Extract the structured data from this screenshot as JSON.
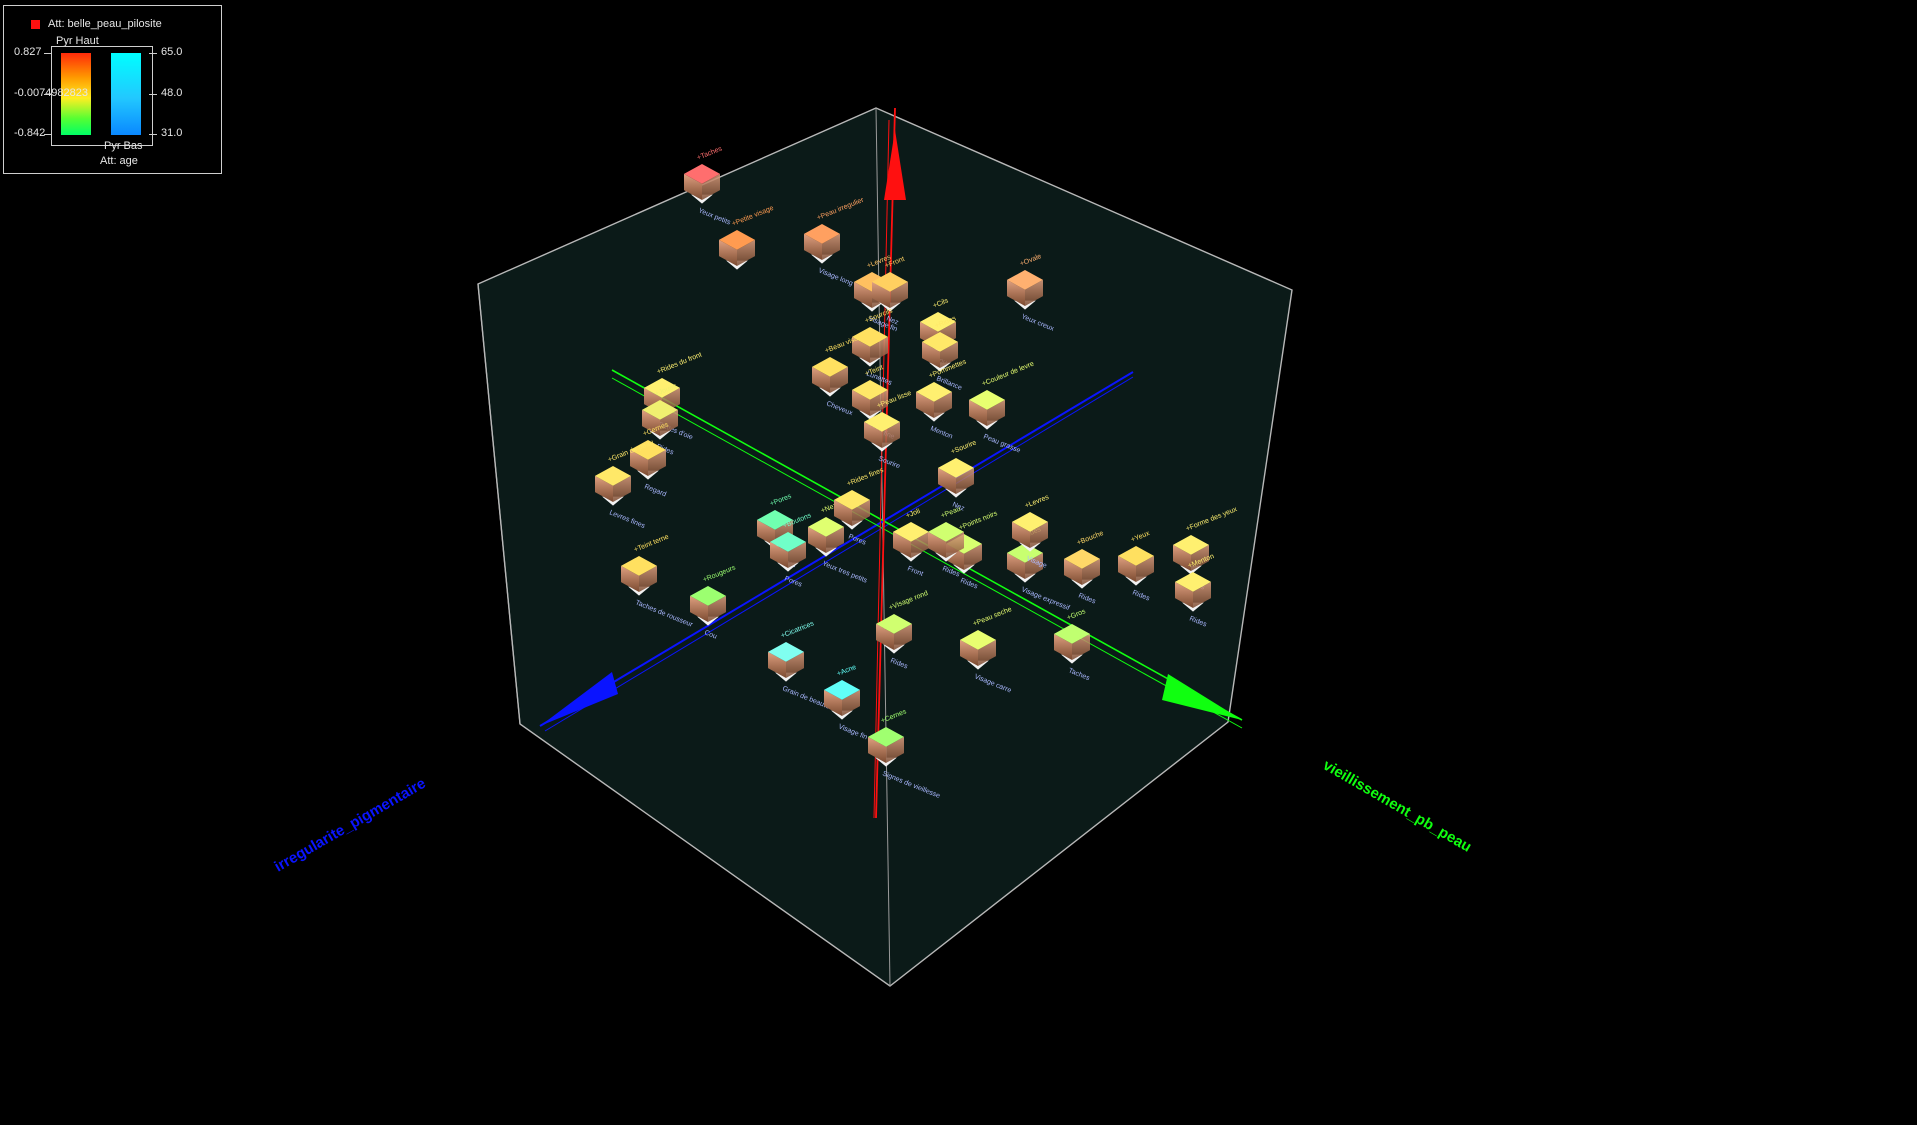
{
  "legend": {
    "color_attr": "Att: belle_peau_pilosite",
    "size_attr": "Att: age",
    "color_max": "0.827",
    "color_mid": "-0.0074982823",
    "color_min": "-0.842",
    "size_max": "65.0",
    "size_mid": "48.0",
    "size_min": "31.0",
    "pyr_high": "Pyr Haut",
    "pyr_low": "Pyr Bas",
    "swatch_color": "#ff1010"
  },
  "axes": {
    "x_label": "irregularite_pigmentaire",
    "y_label": "vieillissement_pb_peau",
    "x_color": "#0a14ff",
    "y_color": "#10ff10",
    "z_color": "#ff1010"
  },
  "points": [
    {
      "color": "#ff6e6e",
      "top": "+Taches",
      "bottom": "Yeux petits"
    },
    {
      "color": "#ff9b50",
      "top": "+Petite visage",
      "bottom": ""
    },
    {
      "color": "#ffa060",
      "top": "+Peau irregulier",
      "bottom": "Visage long"
    },
    {
      "color": "#ffb070",
      "top": "+Ovale",
      "bottom": "Yeux creux"
    },
    {
      "color": "#ffc060",
      "top": "+Levres",
      "bottom": "Visage fin"
    },
    {
      "color": "#ffd060",
      "top": "+Front",
      "bottom": "Nez"
    },
    {
      "color": "#fff070",
      "top": "+Cils",
      "bottom": "Cou"
    },
    {
      "color": "#ffe868",
      "top": "+Rides",
      "bottom": "Brillance"
    },
    {
      "color": "#ffe060",
      "top": "+Sourcils",
      "bottom": "Lunettes"
    },
    {
      "color": "#e8ff70",
      "top": "+Couleur de levre",
      "bottom": "Peau grasse"
    },
    {
      "color": "#fff070",
      "top": "+Pommettes",
      "bottom": "Menton"
    },
    {
      "color": "#ffe060",
      "top": "+Beau visage",
      "bottom": "Cheveux"
    },
    {
      "color": "#fff070",
      "top": "+Rides du front",
      "bottom": "Pattes d'oie"
    },
    {
      "color": "#ffe868",
      "top": "+Teint",
      "bottom": "Peau fine"
    },
    {
      "color": "#f0f070",
      "top": "+Joues",
      "bottom": "Rides"
    },
    {
      "color": "#fff070",
      "top": "+Peau lisse",
      "bottom": "Sourire"
    },
    {
      "color": "#ffe060",
      "top": "+Cernes",
      "bottom": "Regard"
    },
    {
      "color": "#ffe868",
      "top": "+Grain de peau",
      "bottom": "Levres fines"
    },
    {
      "color": "#fff070",
      "top": "+Forme des yeux",
      "bottom": "Rides"
    },
    {
      "color": "#ffe060",
      "top": "+Yeux",
      "bottom": "Rides"
    },
    {
      "color": "#fff070",
      "top": "+Menton",
      "bottom": "Rides"
    },
    {
      "color": "#e0ff70",
      "top": "+Nez",
      "bottom": "Yeux tres petits"
    },
    {
      "color": "#9cff70",
      "top": "+Rougeurs",
      "bottom": "Cou"
    },
    {
      "color": "#70ffb0",
      "top": "+Pores",
      "bottom": "Boutons"
    },
    {
      "color": "#70ffc8",
      "top": "+Boutons",
      "bottom": "Pores"
    },
    {
      "color": "#d0ff70",
      "top": "+Visage rond",
      "bottom": "Rides"
    },
    {
      "color": "#e8ff70",
      "top": "+Peau seche",
      "bottom": "Visage carre"
    },
    {
      "color": "#c0ff70",
      "top": "+Gros",
      "bottom": "Taches"
    },
    {
      "color": "#c8ff70",
      "top": "+Rides",
      "bottom": "Visage expressif"
    },
    {
      "color": "#80fff0",
      "top": "+Cicatrices",
      "bottom": "Grain de beaute"
    },
    {
      "color": "#60fff8",
      "top": "+Acne",
      "bottom": "Visage fin"
    },
    {
      "color": "#a0ff70",
      "top": "+Cernes",
      "bottom": "Signes de vieillesse"
    },
    {
      "color": "#ffe060",
      "top": "+Teint terne",
      "bottom": "Taches de rousseur"
    },
    {
      "color": "#ffd868",
      "top": "+Bouche",
      "bottom": "Rides"
    },
    {
      "color": "#fff070",
      "top": "+Joli",
      "bottom": "Front"
    },
    {
      "color": "#d8ff70",
      "top": "+Points noirs",
      "bottom": "Rides"
    },
    {
      "color": "#fff070",
      "top": "+Sourire",
      "bottom": "Nez"
    },
    {
      "color": "#fff070",
      "top": "+Levres",
      "bottom": "Visage"
    },
    {
      "color": "#d0ff70",
      "top": "+Peau",
      "bottom": "Rides"
    },
    {
      "color": "#ffe868",
      "top": "+Rides fines",
      "bottom": "Pores"
    }
  ]
}
